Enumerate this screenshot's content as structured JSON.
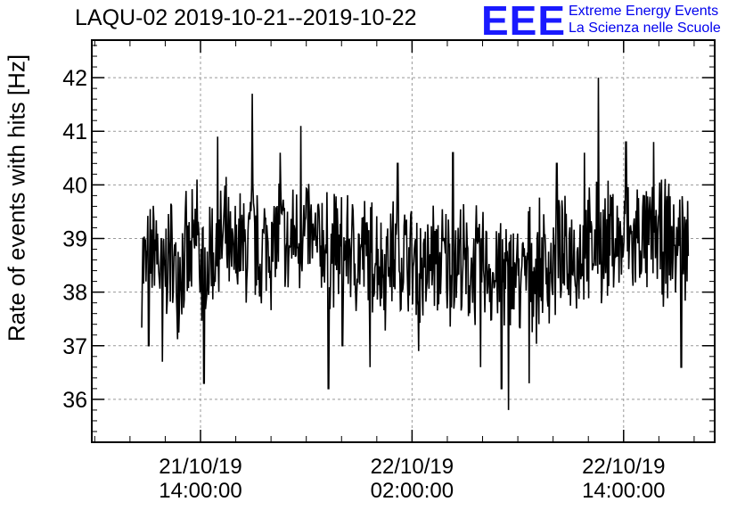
{
  "chart_data": {
    "type": "line",
    "title": "LAQU-02 2019-10-21--2019-10-22",
    "ylabel": "Rate of events with hits [Hz]",
    "xlabel": "",
    "ylim": [
      35.2,
      42.7
    ],
    "yticks": [
      36,
      37,
      38,
      39,
      40,
      41,
      42
    ],
    "xticks": [
      {
        "date": "21/10/19",
        "time": "14:00:00"
      },
      {
        "date": "22/10/19",
        "time": "02:00:00"
      },
      {
        "date": "22/10/19",
        "time": "14:00:00"
      }
    ],
    "x_range": [
      "2019-10-21T07:50:00",
      "2019-10-22T19:10:00"
    ],
    "grid": true,
    "series": [
      {
        "color": "#000000",
        "x_start": "2019-10-21T10:40:00",
        "x_end": "2019-10-22T17:40:00",
        "values": [
          38.6,
          38.4,
          38.9,
          38.1,
          38.8,
          38.3,
          38.7,
          38.5,
          39.0,
          38.2,
          38.8,
          38.6,
          39.1,
          38.4,
          38.9,
          38.7,
          39.2,
          38.5,
          39.0,
          38.8,
          39.3,
          38.6,
          39.1,
          38.9,
          39.2,
          38.7,
          39.0,
          38.8,
          38.9,
          38.6,
          38.9,
          38.5,
          38.8,
          38.6,
          38.7,
          38.4,
          38.8,
          38.6,
          38.7,
          38.5,
          38.6,
          38.3,
          38.7,
          38.5,
          38.6,
          38.4,
          38.7,
          38.3,
          38.5,
          38.4,
          38.6,
          38.2,
          38.5,
          38.3,
          38.4,
          38.2,
          38.5,
          38.3,
          38.6,
          38.4,
          38.7,
          38.5,
          38.8,
          38.6,
          38.9,
          38.7,
          39.0,
          38.8,
          39.1,
          38.8,
          39.0,
          38.9,
          39.1,
          38.8,
          39.2,
          38.9,
          39.0,
          38.8,
          39.1,
          38.7
        ],
        "spikes": [
          {
            "i": 1,
            "v": 37.0
          },
          {
            "i": 3,
            "v": 36.7
          },
          {
            "i": 8,
            "v": 40.1
          },
          {
            "i": 9,
            "v": 36.3
          },
          {
            "i": 11,
            "v": 40.9
          },
          {
            "i": 16,
            "v": 41.7
          },
          {
            "i": 20,
            "v": 40.6
          },
          {
            "i": 23,
            "v": 41.1
          },
          {
            "i": 27,
            "v": 36.2
          },
          {
            "i": 29,
            "v": 37.0
          },
          {
            "i": 33,
            "v": 36.6
          },
          {
            "i": 37,
            "v": 40.4
          },
          {
            "i": 40,
            "v": 36.9
          },
          {
            "i": 45,
            "v": 40.6
          },
          {
            "i": 49,
            "v": 36.6
          },
          {
            "i": 52,
            "v": 36.2
          },
          {
            "i": 53,
            "v": 35.8
          },
          {
            "i": 56,
            "v": 36.3
          },
          {
            "i": 60,
            "v": 40.4
          },
          {
            "i": 64,
            "v": 40.6
          },
          {
            "i": 66,
            "v": 42.0
          },
          {
            "i": 70,
            "v": 40.8
          },
          {
            "i": 74,
            "v": 40.8
          },
          {
            "i": 78,
            "v": 36.6
          }
        ]
      }
    ]
  },
  "logo": {
    "mark": "EEE",
    "line1": "Extreme Energy Events",
    "line2": "La Scienza nelle Scuole"
  }
}
